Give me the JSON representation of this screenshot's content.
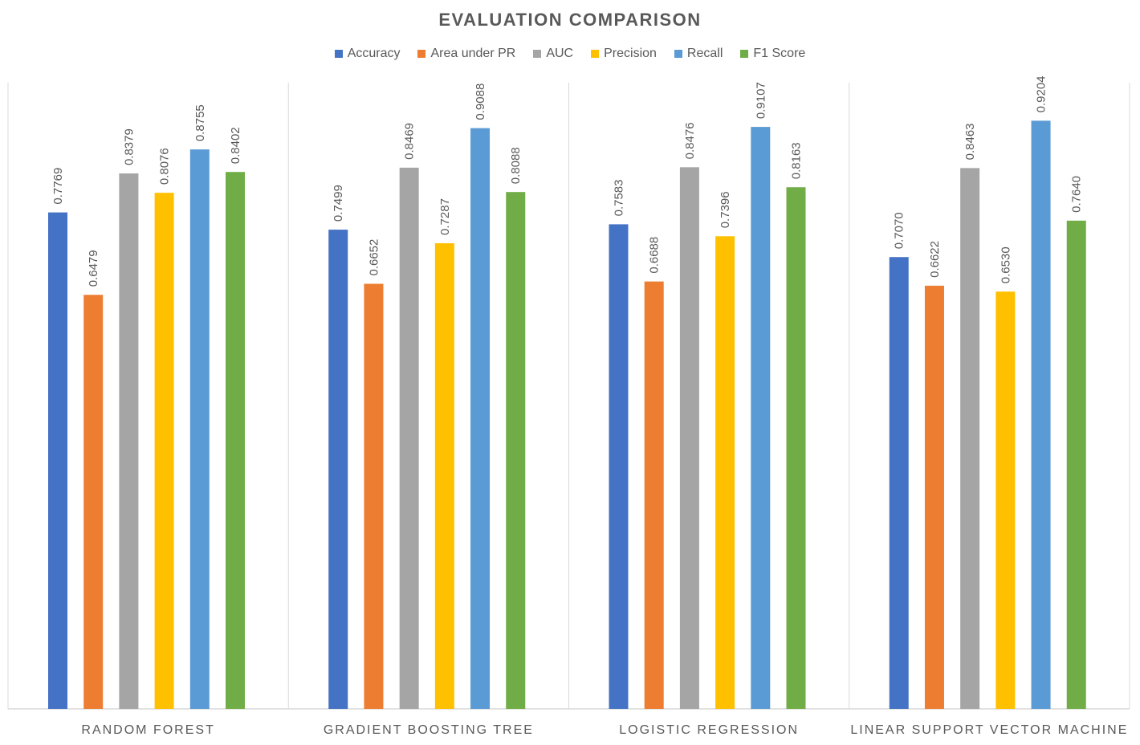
{
  "chart_data": {
    "type": "bar",
    "title": "EVALUATION COMPARISON",
    "xlabel": "",
    "ylabel": "",
    "ylim": [
      0,
      1
    ],
    "grid": false,
    "legend_position": "top",
    "categories": [
      "RANDOM FOREST",
      "GRADIENT BOOSTING TREE",
      "LOGISTIC REGRESSION",
      "LINEAR SUPPORT VECTOR MACHINE"
    ],
    "series": [
      {
        "name": "Accuracy",
        "color": "#4472C4",
        "values": [
          0.7769,
          0.7499,
          0.7583,
          0.707
        ],
        "labels": [
          "0.7769",
          "0.7499",
          "0.7583",
          "0.7070"
        ]
      },
      {
        "name": "Area under PR",
        "color": "#ED7D31",
        "values": [
          0.6479,
          0.6652,
          0.6688,
          0.6622
        ],
        "labels": [
          "0.6479",
          "0.6652",
          "0.6688",
          "0.6622"
        ]
      },
      {
        "name": "AUC",
        "color": "#A5A5A5",
        "values": [
          0.8379,
          0.8469,
          0.8476,
          0.8463
        ],
        "labels": [
          "0.8379",
          "0.8469",
          "0.8476",
          "0.8463"
        ]
      },
      {
        "name": "Precision",
        "color": "#FFC000",
        "values": [
          0.8076,
          0.7287,
          0.7396,
          0.653
        ],
        "labels": [
          "0.8076",
          "0.7287",
          "0.7396",
          "0.6530"
        ]
      },
      {
        "name": "Recall",
        "color": "#5B9BD5",
        "values": [
          0.8755,
          0.9088,
          0.9107,
          0.9204
        ],
        "labels": [
          "0.8755",
          "0.9088",
          "0.9107",
          "0.9204"
        ]
      },
      {
        "name": "F1 Score",
        "color": "#70AD47",
        "values": [
          0.8402,
          0.8088,
          0.8163,
          0.764
        ],
        "labels": [
          "0.8402",
          "0.8088",
          "0.8163",
          "0.7640"
        ]
      }
    ]
  }
}
